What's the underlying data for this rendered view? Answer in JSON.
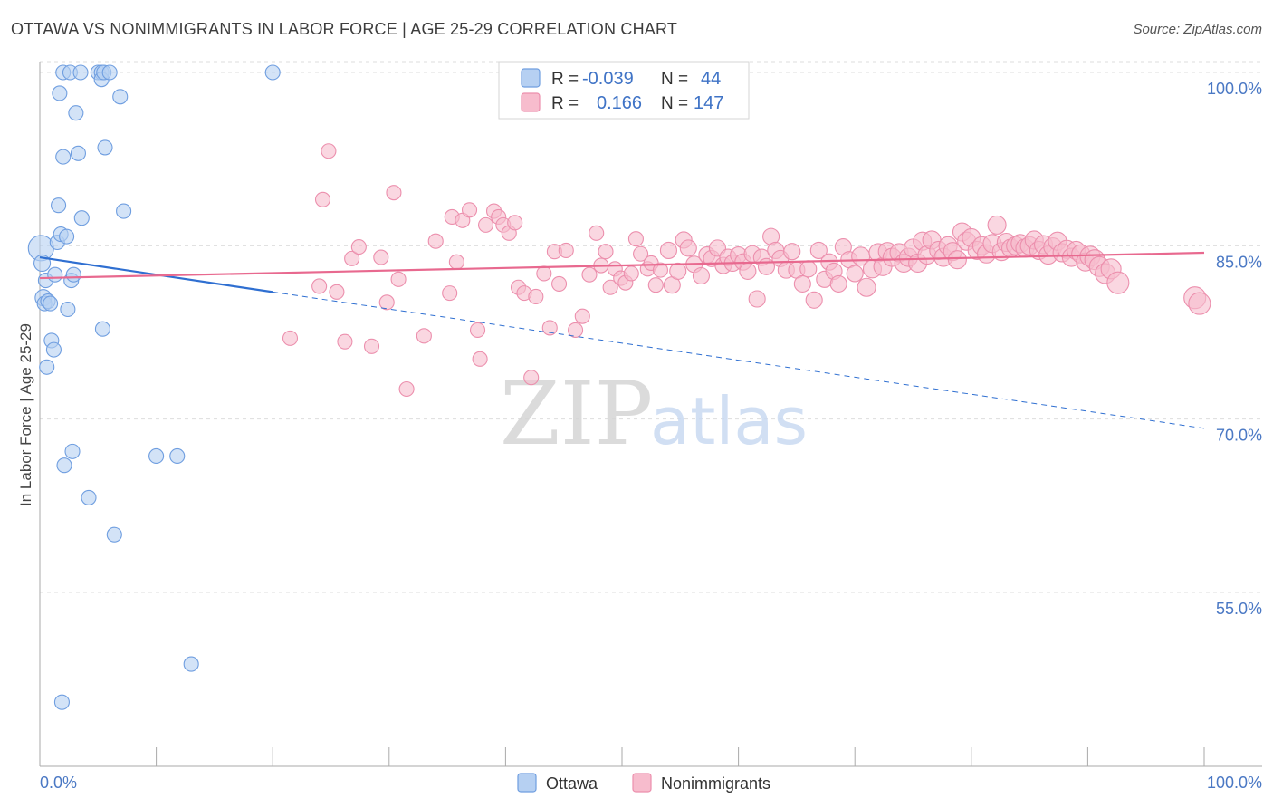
{
  "title": "OTTAWA VS NONIMMIGRANTS IN LABOR FORCE | AGE 25-29 CORRELATION CHART",
  "source": "Source: ZipAtlas.com",
  "watermark": {
    "zip": "ZIP",
    "atlas": "atlas"
  },
  "colors": {
    "ottawa_fill": "#b6d0f2",
    "ottawa_stroke": "#6f9ee0",
    "ottawa_line": "#2f6fd1",
    "nonimm_fill": "#f7bccd",
    "nonimm_stroke": "#ec8fad",
    "nonimm_line": "#e8698f",
    "tick_text": "#4a78c4",
    "grid": "#dddddd"
  },
  "legend": {
    "rows": [
      {
        "r_label": "R =",
        "r_value": "-0.039",
        "n_label": "N =",
        "n_value": "44"
      },
      {
        "r_label": "R =",
        "r_value": "0.166",
        "n_label": "N =",
        "n_value": "147"
      }
    ]
  },
  "chart_data": {
    "type": "scatter",
    "title": "OTTAWA VS NONIMMIGRANTS IN LABOR FORCE | AGE 25-29 CORRELATION CHART",
    "xlabel": "",
    "ylabel": "In Labor Force | Age 25-29",
    "xlim": [
      0,
      100
    ],
    "ylim": [
      40,
      101.5
    ],
    "x_tick_labels": [
      "0.0%",
      "100.0%"
    ],
    "y_ticks": [
      55,
      70,
      85,
      100
    ],
    "y_tick_labels": [
      "55.0%",
      "70.0%",
      "85.0%",
      "100.0%"
    ],
    "grid": true,
    "legend_position": "top-center",
    "series": [
      {
        "name": "Ottawa",
        "r": -0.039,
        "n": 44,
        "trend": {
          "solid": [
            [
              0,
              84.0
            ],
            [
              20,
              81.0
            ]
          ],
          "dashed": [
            [
              20,
              81.0
            ],
            [
              100,
              69.2
            ]
          ]
        },
        "points": [
          [
            0.1,
            84.8,
            14
          ],
          [
            0.2,
            83.5,
            9
          ],
          [
            0.3,
            80.5,
            9
          ],
          [
            0.4,
            80.0,
            8
          ],
          [
            0.5,
            82.0,
            8
          ],
          [
            0.6,
            74.5,
            8
          ],
          [
            0.7,
            80.2,
            8
          ],
          [
            0.9,
            80.0,
            8
          ],
          [
            1.0,
            76.8,
            8
          ],
          [
            1.2,
            76.0,
            8
          ],
          [
            1.3,
            82.5,
            8
          ],
          [
            1.5,
            85.3,
            8
          ],
          [
            1.6,
            88.5,
            8
          ],
          [
            1.7,
            98.2,
            8
          ],
          [
            1.8,
            86.0,
            8
          ],
          [
            1.9,
            45.5,
            8
          ],
          [
            2.0,
            100.0,
            8
          ],
          [
            2.0,
            92.7,
            8
          ],
          [
            2.1,
            66.0,
            8
          ],
          [
            2.3,
            85.8,
            8
          ],
          [
            2.4,
            79.5,
            8
          ],
          [
            2.6,
            100.0,
            8
          ],
          [
            2.7,
            82.0,
            8
          ],
          [
            2.8,
            67.2,
            8
          ],
          [
            2.9,
            82.5,
            8
          ],
          [
            3.1,
            96.5,
            8
          ],
          [
            3.3,
            93.0,
            8
          ],
          [
            3.5,
            100.0,
            8
          ],
          [
            3.6,
            87.4,
            8
          ],
          [
            4.2,
            63.2,
            8
          ],
          [
            5.0,
            100.0,
            8
          ],
          [
            5.3,
            100.0,
            8
          ],
          [
            5.3,
            99.4,
            8
          ],
          [
            5.4,
            77.8,
            8
          ],
          [
            5.5,
            100.0,
            8
          ],
          [
            5.6,
            93.5,
            8
          ],
          [
            6.0,
            100.0,
            8
          ],
          [
            6.4,
            60.0,
            8
          ],
          [
            6.9,
            97.9,
            8
          ],
          [
            7.2,
            88.0,
            8
          ],
          [
            10.0,
            66.8,
            8
          ],
          [
            11.8,
            66.8,
            8
          ],
          [
            13.0,
            48.8,
            8
          ],
          [
            20.0,
            100.0,
            8
          ]
        ]
      },
      {
        "name": "Nonimmigrants",
        "r": 0.166,
        "n": 147,
        "trend": {
          "solid": [
            [
              0,
              82.2
            ],
            [
              100,
              84.4
            ]
          ]
        },
        "points": [
          [
            21.5,
            77.0,
            8
          ],
          [
            24.0,
            81.5,
            8
          ],
          [
            24.3,
            89.0,
            8
          ],
          [
            24.8,
            93.2,
            8
          ],
          [
            25.5,
            81.0,
            8
          ],
          [
            26.2,
            76.7,
            8
          ],
          [
            26.8,
            83.9,
            8
          ],
          [
            27.4,
            84.9,
            8
          ],
          [
            28.5,
            76.3,
            8
          ],
          [
            29.3,
            84.0,
            8
          ],
          [
            29.8,
            80.1,
            8
          ],
          [
            30.4,
            89.6,
            8
          ],
          [
            30.8,
            82.1,
            8
          ],
          [
            31.5,
            72.6,
            8
          ],
          [
            33.0,
            77.2,
            8
          ],
          [
            34.0,
            85.4,
            8
          ],
          [
            35.2,
            80.9,
            8
          ],
          [
            35.4,
            87.5,
            8
          ],
          [
            35.8,
            83.6,
            8
          ],
          [
            36.3,
            87.2,
            8
          ],
          [
            36.9,
            88.1,
            8
          ],
          [
            37.6,
            77.7,
            8
          ],
          [
            37.8,
            75.2,
            8
          ],
          [
            38.3,
            86.8,
            8
          ],
          [
            39.0,
            88.0,
            8
          ],
          [
            39.4,
            87.5,
            8
          ],
          [
            39.8,
            86.8,
            8
          ],
          [
            40.3,
            86.1,
            8
          ],
          [
            40.8,
            87.0,
            8
          ],
          [
            41.1,
            81.4,
            8
          ],
          [
            41.6,
            80.9,
            8
          ],
          [
            42.2,
            73.6,
            8
          ],
          [
            42.6,
            80.6,
            8
          ],
          [
            43.3,
            82.6,
            8
          ],
          [
            43.8,
            77.9,
            8
          ],
          [
            44.2,
            84.5,
            8
          ],
          [
            44.6,
            81.7,
            8
          ],
          [
            45.2,
            84.6,
            8
          ],
          [
            46.0,
            77.7,
            8
          ],
          [
            46.6,
            78.9,
            8
          ],
          [
            47.2,
            82.5,
            8
          ],
          [
            47.8,
            86.1,
            8
          ],
          [
            48.2,
            83.3,
            8
          ],
          [
            48.6,
            84.5,
            8
          ],
          [
            49.0,
            81.4,
            8
          ],
          [
            49.4,
            83.0,
            8
          ],
          [
            49.9,
            82.2,
            8
          ],
          [
            50.3,
            81.8,
            8
          ],
          [
            50.8,
            82.6,
            8
          ],
          [
            51.2,
            85.6,
            8
          ],
          [
            51.6,
            84.3,
            8
          ],
          [
            52.2,
            83.0,
            8
          ],
          [
            52.5,
            83.5,
            8
          ],
          [
            52.9,
            81.6,
            8
          ],
          [
            53.3,
            82.9,
            8
          ],
          [
            54.0,
            84.6,
            9
          ],
          [
            54.3,
            81.6,
            9
          ],
          [
            54.8,
            82.8,
            9
          ],
          [
            55.3,
            85.5,
            9
          ],
          [
            55.7,
            84.8,
            9
          ],
          [
            56.2,
            83.4,
            9
          ],
          [
            56.8,
            82.4,
            9
          ],
          [
            57.3,
            84.2,
            9
          ],
          [
            57.7,
            83.9,
            9
          ],
          [
            58.2,
            84.8,
            9
          ],
          [
            58.7,
            83.3,
            9
          ],
          [
            59.1,
            84.0,
            9
          ],
          [
            59.5,
            83.5,
            9
          ],
          [
            60.0,
            84.2,
            9
          ],
          [
            60.4,
            83.6,
            9
          ],
          [
            60.8,
            82.8,
            9
          ],
          [
            61.2,
            84.3,
            9
          ],
          [
            61.6,
            80.4,
            9
          ],
          [
            62.0,
            84.0,
            9
          ],
          [
            62.4,
            83.2,
            9
          ],
          [
            62.8,
            85.8,
            9
          ],
          [
            63.2,
            84.6,
            9
          ],
          [
            63.6,
            83.9,
            9
          ],
          [
            64.1,
            82.9,
            9
          ],
          [
            64.6,
            84.5,
            9
          ],
          [
            65.0,
            82.9,
            9
          ],
          [
            65.5,
            81.7,
            9
          ],
          [
            66.0,
            83.0,
            9
          ],
          [
            66.5,
            80.3,
            9
          ],
          [
            66.9,
            84.6,
            9
          ],
          [
            67.4,
            82.1,
            9
          ],
          [
            67.8,
            83.6,
            9
          ],
          [
            68.2,
            82.8,
            9
          ],
          [
            68.6,
            81.7,
            9
          ],
          [
            69.0,
            84.9,
            9
          ],
          [
            69.5,
            83.8,
            9
          ],
          [
            70.0,
            82.6,
            9
          ],
          [
            70.5,
            84.1,
            10
          ],
          [
            71.0,
            81.4,
            10
          ],
          [
            71.5,
            83.0,
            10
          ],
          [
            72.0,
            84.4,
            10
          ],
          [
            72.4,
            83.2,
            10
          ],
          [
            72.8,
            84.5,
            10
          ],
          [
            73.2,
            84.0,
            10
          ],
          [
            73.8,
            84.4,
            10
          ],
          [
            74.2,
            83.5,
            10
          ],
          [
            74.6,
            84.0,
            10
          ],
          [
            75.0,
            84.8,
            10
          ],
          [
            75.4,
            83.5,
            10
          ],
          [
            75.8,
            85.4,
            10
          ],
          [
            76.2,
            84.2,
            10
          ],
          [
            76.6,
            85.5,
            10
          ],
          [
            77.2,
            84.6,
            10
          ],
          [
            77.6,
            84.0,
            10
          ],
          [
            78.0,
            85.0,
            10
          ],
          [
            78.4,
            84.5,
            10
          ],
          [
            78.8,
            83.8,
            10
          ],
          [
            79.2,
            86.2,
            10
          ],
          [
            79.6,
            85.4,
            10
          ],
          [
            80.0,
            85.7,
            10
          ],
          [
            80.5,
            84.6,
            10
          ],
          [
            80.9,
            85.0,
            10
          ],
          [
            81.3,
            84.3,
            10
          ],
          [
            81.8,
            85.2,
            10
          ],
          [
            82.2,
            86.8,
            10
          ],
          [
            82.6,
            84.5,
            10
          ],
          [
            83.0,
            85.3,
            10
          ],
          [
            83.4,
            84.8,
            10
          ],
          [
            83.8,
            85.0,
            10
          ],
          [
            84.2,
            85.2,
            10
          ],
          [
            84.6,
            84.8,
            10
          ],
          [
            85.0,
            85.0,
            10
          ],
          [
            85.4,
            85.5,
            10
          ],
          [
            85.8,
            84.6,
            10
          ],
          [
            86.2,
            85.1,
            10
          ],
          [
            86.6,
            84.2,
            10
          ],
          [
            87.0,
            84.9,
            10
          ],
          [
            87.4,
            85.4,
            10
          ],
          [
            87.8,
            84.4,
            10
          ],
          [
            88.2,
            84.7,
            10
          ],
          [
            88.6,
            84.0,
            10
          ],
          [
            89.0,
            84.6,
            10
          ],
          [
            89.4,
            84.3,
            10
          ],
          [
            89.8,
            83.6,
            10
          ],
          [
            90.2,
            84.1,
            11
          ],
          [
            90.6,
            83.8,
            11
          ],
          [
            91.0,
            83.2,
            11
          ],
          [
            91.5,
            82.6,
            11
          ],
          [
            92.0,
            83.0,
            11
          ],
          [
            92.6,
            81.8,
            12
          ],
          [
            99.2,
            80.5,
            12
          ],
          [
            99.6,
            80.0,
            12
          ]
        ]
      }
    ]
  }
}
